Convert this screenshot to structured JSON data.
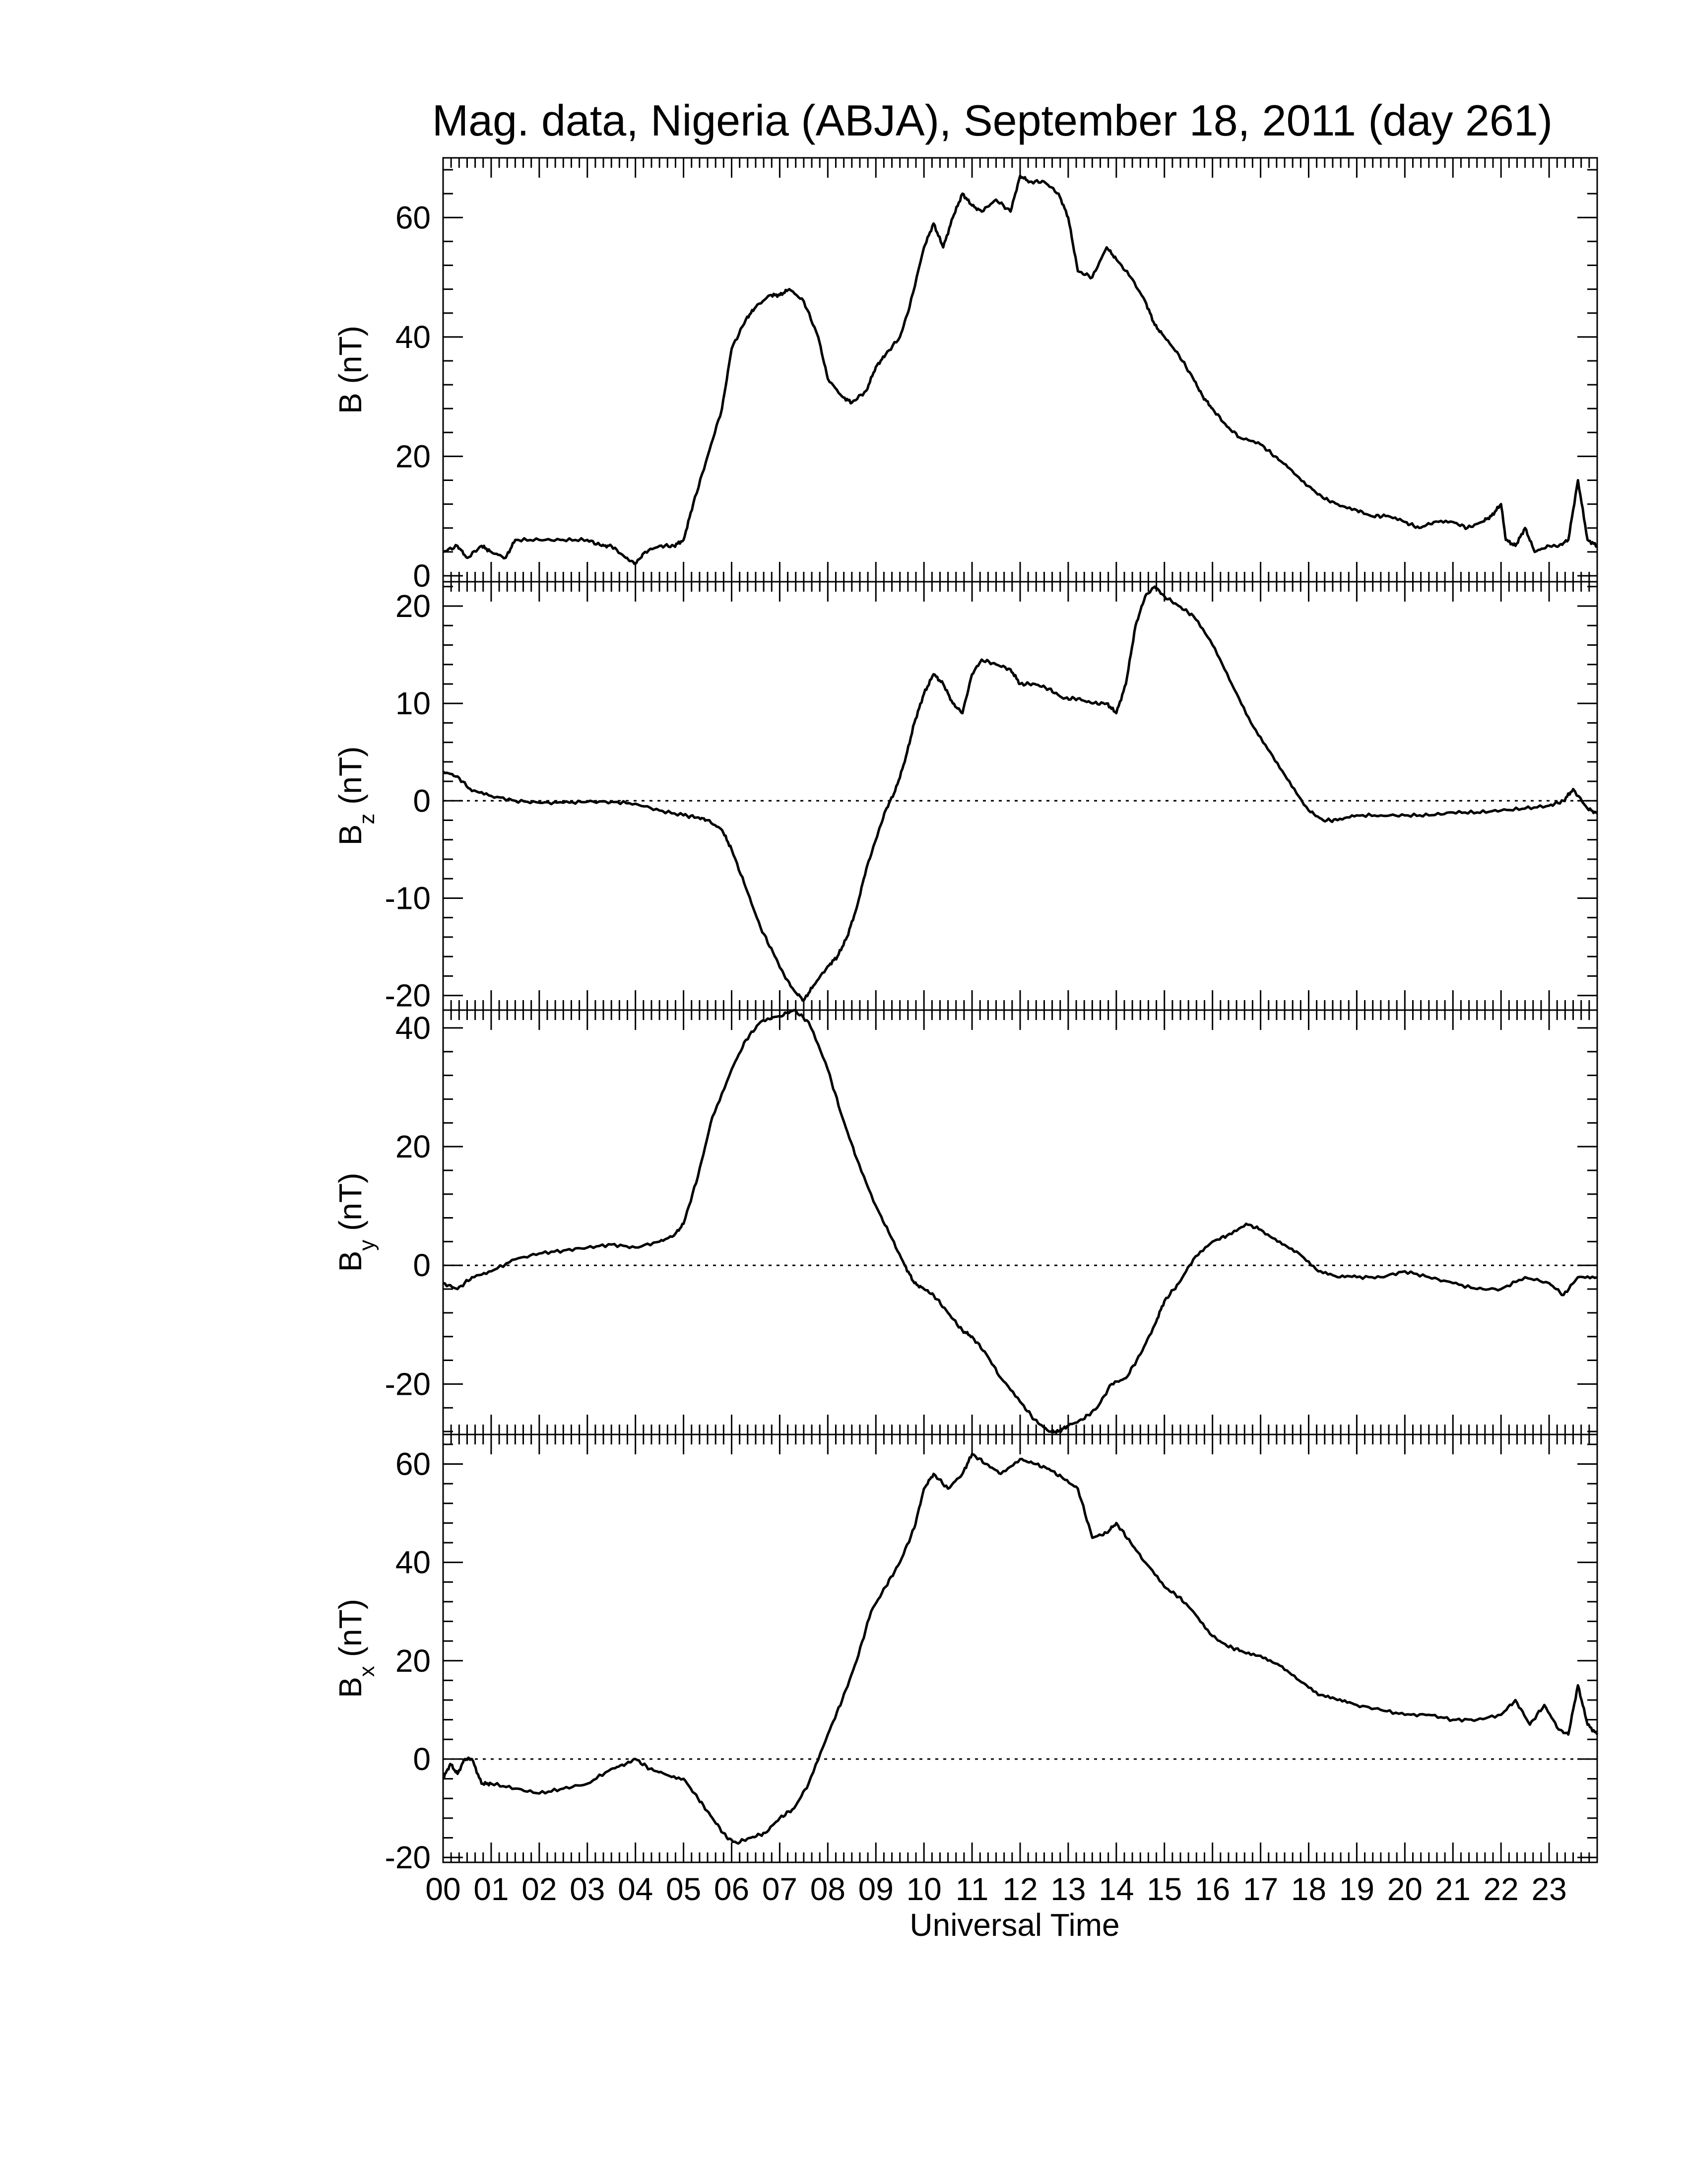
{
  "figure": {
    "title": "Mag. data, Nigeria (ABJA), September 18, 2011 (day 261)",
    "xlabel": "Universal Time",
    "x_tick_labels": [
      "00",
      "01",
      "02",
      "03",
      "04",
      "05",
      "06",
      "07",
      "08",
      "09",
      "10",
      "11",
      "12",
      "13",
      "14",
      "15",
      "16",
      "17",
      "18",
      "19",
      "20",
      "21",
      "22",
      "23"
    ]
  },
  "chart_data": [
    {
      "type": "line",
      "title": "",
      "ylabel": "B (nT)",
      "ylabel_main": "B",
      "ylabel_sub": "",
      "ylabel_unit": " (nT)",
      "xlim": [
        0,
        24
      ],
      "ylim": [
        -1,
        70
      ],
      "yticks": [
        0,
        20,
        40,
        60
      ],
      "zero_line": false,
      "series": [
        {
          "x": [
            0,
            0.3,
            0.5,
            0.8,
            1.0,
            1.3,
            1.5,
            2.0,
            2.5,
            3.0,
            3.3,
            3.5,
            3.8,
            4.0,
            4.2,
            4.5,
            4.8,
            5.0,
            5.2,
            5.5,
            5.8,
            6.0,
            6.3,
            6.5,
            6.8,
            7.0,
            7.2,
            7.5,
            7.8,
            8.0,
            8.3,
            8.5,
            8.8,
            9.0,
            9.2,
            9.5,
            9.7,
            10.0,
            10.2,
            10.4,
            10.6,
            10.8,
            11.0,
            11.2,
            11.5,
            11.8,
            12.0,
            12.2,
            12.5,
            12.8,
            13.0,
            13.2,
            13.5,
            13.8,
            14.0,
            14.3,
            14.6,
            14.8,
            15.0,
            15.3,
            15.6,
            15.8,
            16.0,
            16.3,
            16.6,
            17.0,
            17.3,
            17.6,
            18.0,
            18.3,
            18.6,
            19.0,
            19.3,
            19.6,
            20.0,
            20.3,
            20.6,
            21.0,
            21.3,
            21.6,
            21.8,
            22.0,
            22.1,
            22.3,
            22.5,
            22.7,
            23.0,
            23.2,
            23.4,
            23.6,
            23.8,
            24.0
          ],
          "y": [
            4,
            5,
            3,
            5,
            4,
            3,
            6,
            6,
            6,
            6,
            5,
            5,
            3,
            2,
            4,
            5,
            5,
            6,
            12,
            20,
            28,
            38,
            43,
            45,
            47,
            47,
            48,
            46,
            40,
            33,
            30,
            29,
            31,
            35,
            37,
            40,
            45,
            55,
            59,
            55,
            60,
            64,
            62,
            61,
            63,
            61,
            67,
            66,
            66,
            64,
            60,
            51,
            50,
            55,
            53,
            50,
            46,
            42,
            40,
            37,
            33,
            30,
            28,
            25,
            23,
            22,
            20,
            18,
            15,
            13,
            12,
            11,
            10,
            10,
            9,
            8,
            9,
            9,
            8,
            9,
            10,
            12,
            6,
            5,
            8,
            4,
            5,
            5,
            6,
            16,
            6,
            5
          ]
        }
      ]
    },
    {
      "type": "line",
      "title": "",
      "ylabel": "Bz (nT)",
      "ylabel_main": "B",
      "ylabel_sub": "z",
      "ylabel_unit": " (nT)",
      "xlim": [
        0,
        24
      ],
      "ylim": [
        -21.5,
        22.5
      ],
      "yticks": [
        -20,
        -10,
        0,
        10,
        20
      ],
      "zero_line": true,
      "series": [
        {
          "x": [
            0,
            0.3,
            0.6,
            1.0,
            1.5,
            2.0,
            2.5,
            3.0,
            3.5,
            4.0,
            4.5,
            5.0,
            5.3,
            5.5,
            5.8,
            6.0,
            6.3,
            6.6,
            6.9,
            7.1,
            7.3,
            7.5,
            7.7,
            8.0,
            8.2,
            8.4,
            8.6,
            8.8,
            9.0,
            9.2,
            9.4,
            9.6,
            9.8,
            10.0,
            10.2,
            10.4,
            10.6,
            10.8,
            11.0,
            11.2,
            11.5,
            11.8,
            12.0,
            12.3,
            12.6,
            12.9,
            13.2,
            13.5,
            13.8,
            14.0,
            14.2,
            14.4,
            14.6,
            14.8,
            15.0,
            15.3,
            15.6,
            16.0,
            16.4,
            16.8,
            17.2,
            17.6,
            18.0,
            18.3,
            18.6,
            19.0,
            19.5,
            20.0,
            20.5,
            21.0,
            21.5,
            22.0,
            22.5,
            23.0,
            23.3,
            23.5,
            23.8,
            24.0
          ],
          "y": [
            3,
            2.5,
            1,
            0.5,
            0,
            -0.2,
            -0.2,
            -0.1,
            -0.1,
            -0.3,
            -1,
            -1.5,
            -1.7,
            -2,
            -3,
            -5,
            -9,
            -13,
            -16,
            -18,
            -19.5,
            -20.5,
            -19,
            -17,
            -16,
            -14,
            -11,
            -7,
            -4,
            -1,
            1,
            4,
            8,
            11,
            13,
            12,
            10,
            9,
            13,
            14.5,
            14,
            13.5,
            12,
            12,
            11.5,
            10.5,
            10.5,
            10,
            10,
            9,
            12,
            18,
            21,
            22,
            21,
            20,
            19,
            16,
            12,
            8,
            5,
            2,
            -1,
            -2,
            -2,
            -1.5,
            -1.5,
            -1.5,
            -1.5,
            -1.2,
            -1.2,
            -1,
            -0.8,
            -0.5,
            0,
            1.2,
            -0.8,
            -1.3
          ]
        }
      ]
    },
    {
      "type": "line",
      "title": "",
      "ylabel": "By (nT)",
      "ylabel_main": "B",
      "ylabel_sub": "y",
      "ylabel_unit": " (nT)",
      "xlim": [
        0,
        24
      ],
      "ylim": [
        -28.5,
        43
      ],
      "yticks": [
        -20,
        0,
        20,
        40
      ],
      "zero_line": true,
      "series": [
        {
          "x": [
            0,
            0.3,
            0.6,
            1.0,
            1.5,
            2.0,
            2.5,
            3.0,
            3.5,
            4.0,
            4.5,
            4.8,
            5.0,
            5.3,
            5.6,
            6.0,
            6.3,
            6.6,
            7.0,
            7.3,
            7.6,
            8.0,
            8.3,
            8.6,
            9.0,
            9.3,
            9.6,
            9.8,
            10.0,
            10.2,
            10.5,
            10.8,
            11.0,
            11.3,
            11.6,
            12.0,
            12.3,
            12.6,
            12.8,
            13.0,
            13.3,
            13.6,
            13.9,
            14.2,
            14.5,
            14.8,
            15.0,
            15.3,
            15.6,
            16.0,
            16.3,
            16.7,
            17.0,
            17.4,
            17.8,
            18.2,
            18.6,
            19.0,
            19.5,
            20.0,
            20.5,
            21.0,
            21.5,
            22.0,
            22.5,
            23.0,
            23.3,
            23.6,
            24.0
          ],
          "y": [
            -3,
            -4,
            -2,
            -1,
            1,
            2,
            2.5,
            3,
            3.5,
            3,
            4,
            5,
            7,
            15,
            25,
            33,
            38,
            41,
            42,
            43,
            41,
            33,
            25,
            18,
            10,
            5,
            0,
            -3,
            -4,
            -5,
            -8,
            -11,
            -12,
            -15,
            -19,
            -23,
            -26,
            -28,
            -28,
            -27,
            -26,
            -24,
            -20,
            -19,
            -15,
            -10,
            -6,
            -3,
            1,
            4,
            5,
            7,
            6,
            4,
            2,
            -1,
            -2,
            -2,
            -2,
            -1,
            -2,
            -3,
            -4,
            -4,
            -2,
            -3,
            -5,
            -2,
            -2
          ]
        }
      ]
    },
    {
      "type": "line",
      "title": "",
      "ylabel": "Bx (nT)",
      "ylabel_main": "B",
      "ylabel_sub": "x",
      "ylabel_unit": " (nT)",
      "xlim": [
        0,
        24
      ],
      "ylim": [
        -21,
        66
      ],
      "yticks": [
        -20,
        0,
        20,
        40,
        60
      ],
      "zero_line": true,
      "series": [
        {
          "x": [
            0,
            0.15,
            0.3,
            0.45,
            0.6,
            0.8,
            1.0,
            1.5,
            2.0,
            2.5,
            3.0,
            3.5,
            3.8,
            4.0,
            4.3,
            4.6,
            5.0,
            5.3,
            5.6,
            5.9,
            6.1,
            6.4,
            6.7,
            7.0,
            7.3,
            7.6,
            8.0,
            8.3,
            8.6,
            8.9,
            9.2,
            9.5,
            9.8,
            10.0,
            10.2,
            10.5,
            10.8,
            11.0,
            11.3,
            11.6,
            12.0,
            12.3,
            12.6,
            12.9,
            13.2,
            13.5,
            13.8,
            14.0,
            14.3,
            14.6,
            15.0,
            15.3,
            15.6,
            16.0,
            16.3,
            16.6,
            17.0,
            17.4,
            17.8,
            18.2,
            18.6,
            19.0,
            19.5,
            20.0,
            20.5,
            21.0,
            21.5,
            22.0,
            22.3,
            22.6,
            22.9,
            23.2,
            23.4,
            23.6,
            23.8,
            24.0
          ],
          "y": [
            -4,
            -1,
            -3,
            0,
            0,
            -5,
            -5,
            -6,
            -7,
            -6,
            -5,
            -2,
            -1,
            0,
            -2,
            -3,
            -4,
            -8,
            -12,
            -16,
            -17,
            -16,
            -15,
            -12,
            -10,
            -5,
            5,
            12,
            20,
            30,
            35,
            40,
            47,
            55,
            58,
            55,
            58,
            62,
            60,
            58,
            61,
            60,
            59,
            57,
            55,
            45,
            46,
            48,
            44,
            40,
            35,
            33,
            30,
            25,
            23,
            22,
            21,
            19,
            16,
            13,
            12,
            11,
            10,
            9,
            9,
            8,
            8,
            9,
            12,
            7,
            11,
            6,
            5,
            15,
            7,
            5
          ]
        }
      ]
    }
  ]
}
